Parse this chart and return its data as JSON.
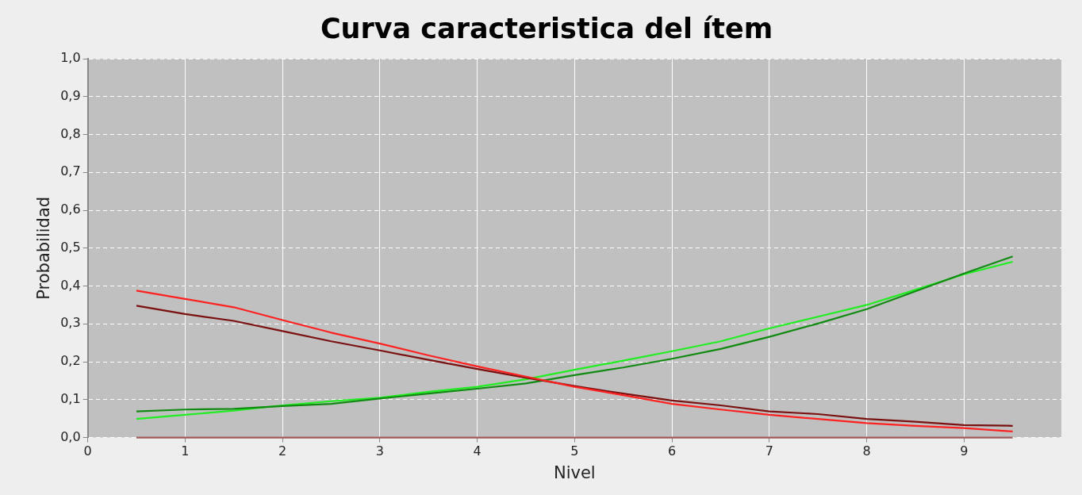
{
  "chart_data": {
    "type": "line",
    "title": "Curva caracteristica del ítem",
    "xlabel": "Nivel",
    "ylabel": "Probabilidad",
    "x": [
      0.5,
      1,
      1.5,
      2,
      2.5,
      3,
      3.5,
      4,
      4.5,
      5,
      5.5,
      6,
      6.5,
      7,
      7.5,
      8,
      8.5,
      9,
      9.5
    ],
    "series": [
      {
        "color": "#a05a5a",
        "values": [
          0,
          0,
          0,
          0,
          0,
          0,
          0,
          0,
          0,
          0,
          0,
          0,
          0,
          0,
          0,
          0,
          0,
          0,
          0
        ]
      },
      {
        "color": "#ff2020",
        "values": [
          0.388,
          0.366,
          0.344,
          0.31,
          0.277,
          0.248,
          0.217,
          0.188,
          0.161,
          0.134,
          0.112,
          0.089,
          0.074,
          0.06,
          0.049,
          0.038,
          0.031,
          0.025,
          0.016
        ]
      },
      {
        "color": "#7a1010",
        "values": [
          0.348,
          0.326,
          0.308,
          0.281,
          0.254,
          0.23,
          0.205,
          0.181,
          0.158,
          0.136,
          0.116,
          0.098,
          0.085,
          0.069,
          0.062,
          0.049,
          0.042,
          0.033,
          0.031
        ]
      },
      {
        "color": "#108a10",
        "values": [
          0.069,
          0.074,
          0.076,
          0.083,
          0.089,
          0.103,
          0.116,
          0.129,
          0.143,
          0.165,
          0.185,
          0.208,
          0.234,
          0.266,
          0.301,
          0.339,
          0.386,
          0.433,
          0.478
        ]
      },
      {
        "color": "#20ee20",
        "values": [
          0.049,
          0.06,
          0.071,
          0.085,
          0.096,
          0.105,
          0.121,
          0.134,
          0.154,
          0.179,
          0.203,
          0.228,
          0.254,
          0.288,
          0.319,
          0.35,
          0.39,
          0.431,
          0.464
        ]
      }
    ],
    "xlim": [
      0,
      10
    ],
    "xticks": [
      0,
      1,
      2,
      3,
      4,
      5,
      6,
      7,
      8,
      9
    ],
    "ylim": [
      0,
      1
    ],
    "yticks": [
      {
        "value": 0,
        "label": "0,0"
      },
      {
        "value": 0.1,
        "label": "0,1"
      },
      {
        "value": 0.2,
        "label": "0,2"
      },
      {
        "value": 0.3,
        "label": "0,3"
      },
      {
        "value": 0.4,
        "label": "0,4"
      },
      {
        "value": 0.5,
        "label": "0,5"
      },
      {
        "value": 0.6,
        "label": "0,6"
      },
      {
        "value": 0.7,
        "label": "0,7"
      },
      {
        "value": 0.8,
        "label": "0,8"
      },
      {
        "value": 0.9,
        "label": "0,9"
      },
      {
        "value": 1,
        "label": "1,0"
      }
    ],
    "grid": true,
    "legend": false,
    "marker": "none",
    "line_style": "solid"
  }
}
